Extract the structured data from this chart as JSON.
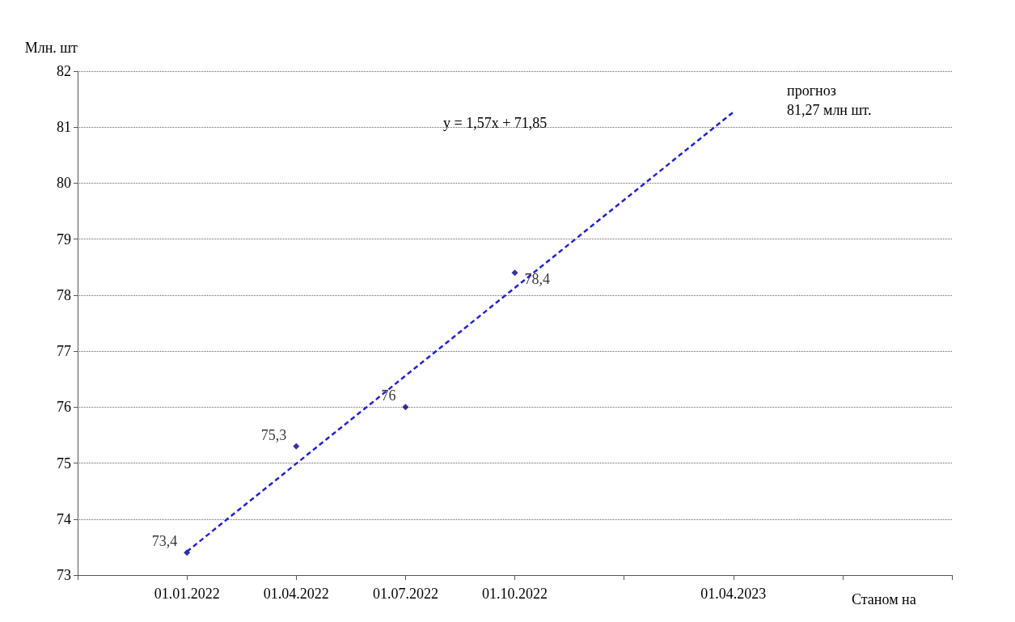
{
  "chart_data": {
    "type": "scatter",
    "ylabel": "Млн. шт",
    "categories": [
      null,
      "01.01.2022",
      "01.04.2022",
      "01.07.2022",
      "01.10.2022",
      null,
      "01.04.2023",
      null,
      null
    ],
    "series": [
      {
        "color": "#000080",
        "values": [
          null,
          73.4,
          75.3,
          76,
          78.4,
          null,
          null,
          null,
          null
        ],
        "marker": "diamond",
        "value_labels": [
          null,
          "73,4",
          "75,3",
          "76",
          "78,4",
          null,
          null,
          null,
          null
        ]
      },
      {
        "type": "line",
        "color": "#2222cc",
        "x": [
          "01.01.2022",
          "01.04.2023"
        ],
        "values": [
          73.42,
          81.27
        ],
        "line_style": "dashed",
        "marker": "none"
      }
    ],
    "ylim": [
      73,
      82
    ],
    "yticks": [
      73,
      74,
      75,
      76,
      77,
      78,
      79,
      80,
      81,
      82
    ],
    "grid": "y",
    "annotations": [
      "y = 1,57x + 71,85",
      "прогноз\n81,27 млн шт.",
      "Станом на"
    ]
  }
}
